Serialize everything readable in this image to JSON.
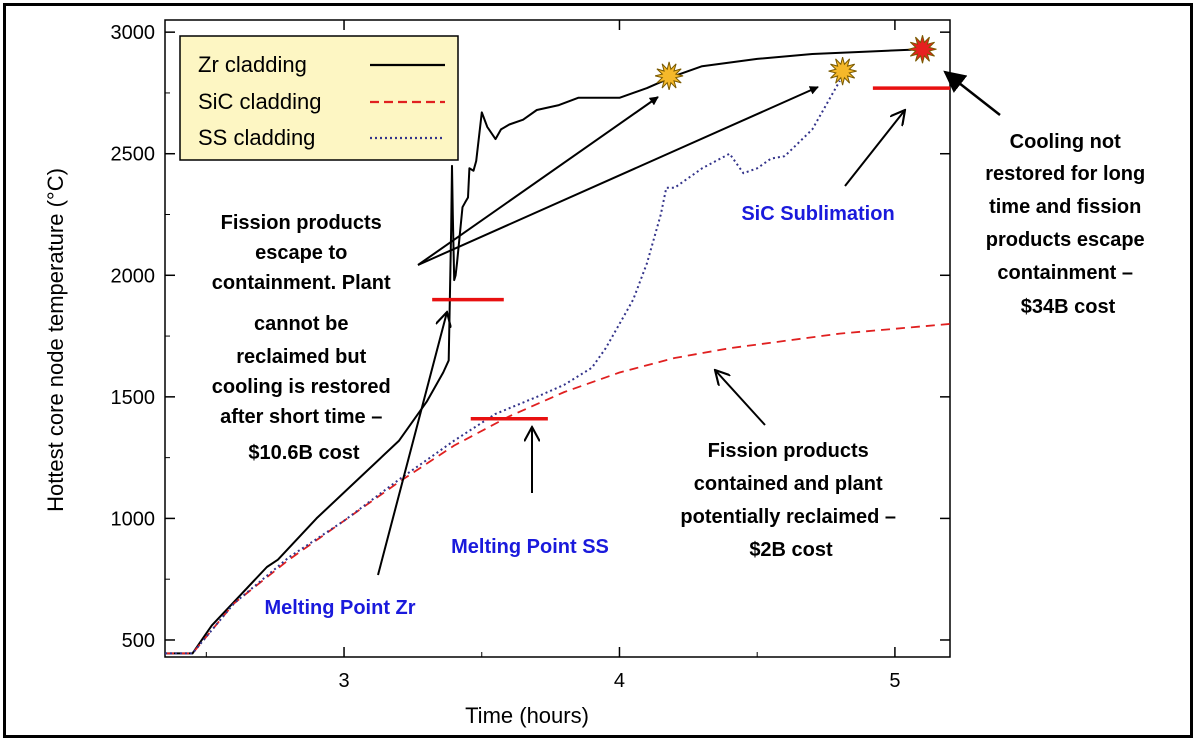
{
  "chart_data": {
    "type": "line",
    "title": "",
    "xlabel": "Time (hours)",
    "ylabel": "Hottest core node temperature (°C)",
    "xlim": [
      2.35,
      5.2
    ],
    "ylim": [
      430,
      3050
    ],
    "xticks": [
      3,
      4,
      5
    ],
    "yticks": [
      500,
      1000,
      1500,
      2000,
      2500,
      3000
    ],
    "grid": false,
    "legend": {
      "placement": "top-left"
    },
    "series": [
      {
        "name": "Zr cladding",
        "color": "#000000",
        "dash": "solid",
        "x": [
          2.35,
          2.45,
          2.52,
          2.62,
          2.72,
          2.76,
          2.9,
          3.05,
          3.2,
          3.3,
          3.36,
          3.38,
          3.389,
          3.392,
          3.395,
          3.4,
          3.405,
          3.41,
          3.43,
          3.44,
          3.45,
          3.455,
          3.47,
          3.48,
          3.5,
          3.52,
          3.55,
          3.57,
          3.6,
          3.65,
          3.7,
          3.78,
          3.85,
          3.9,
          4.0,
          4.1,
          4.2,
          4.3,
          4.5,
          4.7,
          4.9,
          5.1
        ],
        "y": [
          445,
          445,
          560,
          680,
          800,
          830,
          1000,
          1160,
          1320,
          1480,
          1600,
          1650,
          2200,
          2450,
          2250,
          1980,
          2000,
          2050,
          2280,
          2300,
          2320,
          2440,
          2430,
          2470,
          2670,
          2610,
          2560,
          2600,
          2620,
          2640,
          2680,
          2700,
          2730,
          2730,
          2730,
          2770,
          2820,
          2860,
          2890,
          2910,
          2920,
          2930
        ]
      },
      {
        "name": "SiC cladding",
        "color": "#e02020",
        "dash": "dashed",
        "x": [
          2.35,
          2.45,
          2.6,
          2.8,
          3.0,
          3.2,
          3.4,
          3.6,
          3.8,
          4.0,
          4.2,
          4.4,
          4.6,
          4.8,
          5.0,
          5.2
        ],
        "y": [
          445,
          445,
          650,
          830,
          990,
          1150,
          1300,
          1420,
          1520,
          1600,
          1660,
          1700,
          1730,
          1760,
          1780,
          1800
        ]
      },
      {
        "name": "SS cladding",
        "color": "#33338a",
        "dash": "dotted",
        "x": [
          2.35,
          2.45,
          2.6,
          2.8,
          3.0,
          3.2,
          3.4,
          3.55,
          3.7,
          3.8,
          3.9,
          3.95,
          4.0,
          4.05,
          4.1,
          4.15,
          4.17,
          4.2,
          4.3,
          4.4,
          4.45,
          4.5,
          4.55,
          4.6,
          4.7,
          4.8
        ],
        "y": [
          445,
          445,
          650,
          840,
          990,
          1160,
          1320,
          1430,
          1500,
          1550,
          1620,
          1700,
          1800,
          1900,
          2050,
          2250,
          2360,
          2360,
          2440,
          2500,
          2420,
          2440,
          2480,
          2490,
          2600,
          2800
        ]
      }
    ],
    "thresholds": [
      {
        "label": "Melting Point Zr",
        "y": 1900,
        "x": [
          3.32,
          3.58
        ]
      },
      {
        "label": "Melting Point SS",
        "y": 1410,
        "x": [
          3.46,
          3.74
        ]
      },
      {
        "label": "SiC Sublimation",
        "y": 2770,
        "x": [
          4.92,
          5.2
        ]
      }
    ],
    "events": [
      {
        "x": 4.18,
        "y": 2820,
        "color": "#f5b82a"
      },
      {
        "x": 4.81,
        "y": 2840,
        "color": "#f5b82a"
      },
      {
        "x": 5.1,
        "y": 2930,
        "color": "#e62020"
      }
    ],
    "annotations": {
      "zr_melt_label": "Melting Point Zr",
      "ss_melt_label": "Melting Point SS",
      "sic_sub_label": "SiC Sublimation",
      "short_cooling_note": [
        "Fission products",
        "escape to",
        "containment. Plant",
        "cannot be",
        "reclaimed but",
        "cooling is restored",
        "after short time –",
        "$10.6B cost"
      ],
      "contained_note": [
        "Fission products",
        "contained and plant",
        "potentially reclaimed –",
        "$2B cost"
      ],
      "long_cooling_note": [
        "Cooling not",
        "restored for long",
        "time and fission",
        "products escape",
        "containment –",
        "$34B cost"
      ]
    }
  }
}
